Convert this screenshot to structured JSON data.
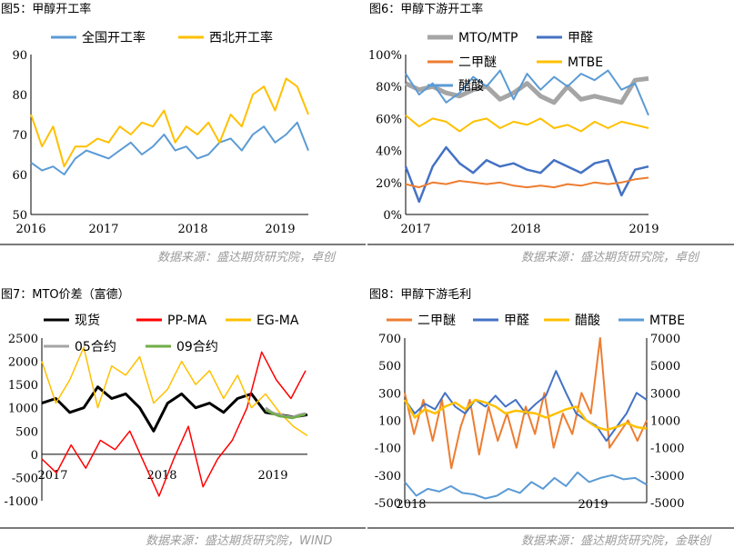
{
  "panels": {
    "p5": {
      "title": "图5：甲醇开工率",
      "source": "数据来源：盛达期货研究院，卓创"
    },
    "p6": {
      "title": "图6：甲醇下游开工率",
      "source": "数据来源：盛达期货研究院，卓创"
    },
    "p7": {
      "title": "图7：MTO价差（富德）",
      "source": "数据来源：盛达期货研究院，WIND"
    },
    "p8": {
      "title": "图8：甲醇下游毛利",
      "source": "数据来源：盛达期货研究院，金联创"
    }
  },
  "colors": {
    "blue": "#5b9bd5",
    "yellow": "#ffc000",
    "orange": "#ed7d31",
    "gray": "#a5a5a5",
    "black": "#000000",
    "red": "#ff0000",
    "green": "#70ad47",
    "navy": "#4472c4",
    "rule": "#7a7a7a"
  },
  "chart_data": [
    {
      "id": "p5",
      "type": "line",
      "x_ticks": [
        "2016",
        "2017",
        "2018",
        "2019"
      ],
      "y_ticks": [
        "50",
        "60",
        "70",
        "80",
        "90"
      ],
      "ylim": [
        50,
        90
      ],
      "legend_position": "top",
      "series": [
        {
          "name": "全国开工率",
          "color": "blue",
          "values": [
            63,
            61,
            62,
            60,
            64,
            66,
            65,
            64,
            66,
            68,
            65,
            67,
            70,
            66,
            67,
            64,
            65,
            68,
            69,
            66,
            70,
            72,
            68,
            70,
            73,
            66
          ]
        },
        {
          "name": "西北开工率",
          "color": "yellow",
          "values": [
            75,
            67,
            72,
            62,
            67,
            67,
            69,
            68,
            72,
            70,
            73,
            72,
            76,
            68,
            72,
            70,
            73,
            68,
            75,
            72,
            80,
            82,
            76,
            84,
            82,
            75
          ]
        }
      ]
    },
    {
      "id": "p6",
      "type": "line",
      "x_ticks": [
        "2017",
        "2018",
        "2019"
      ],
      "y_ticks": [
        "0%",
        "20%",
        "40%",
        "60%",
        "80%",
        "100%"
      ],
      "ylim": [
        0,
        100
      ],
      "legend_position": "top",
      "series": [
        {
          "name": "MTO/MTP",
          "color": "gray",
          "values": [
            82,
            78,
            80,
            76,
            74,
            78,
            80,
            72,
            76,
            82,
            74,
            70,
            80,
            72,
            74,
            72,
            70,
            84,
            85
          ]
        },
        {
          "name": "甲醛",
          "color": "navy",
          "values": [
            30,
            8,
            30,
            42,
            32,
            26,
            34,
            30,
            32,
            28,
            26,
            34,
            30,
            26,
            32,
            34,
            12,
            28,
            30
          ]
        },
        {
          "name": "二甲醚",
          "color": "orange",
          "values": [
            19,
            17,
            20,
            19,
            21,
            20,
            19,
            20,
            18,
            17,
            18,
            17,
            19,
            18,
            20,
            19,
            20,
            22,
            23
          ]
        },
        {
          "name": "MTBE",
          "color": "yellow",
          "values": [
            62,
            55,
            60,
            58,
            52,
            58,
            60,
            54,
            58,
            56,
            60,
            54,
            56,
            52,
            58,
            54,
            58,
            56,
            54
          ]
        },
        {
          "name": "醋酸",
          "color": "blue",
          "values": [
            88,
            75,
            82,
            70,
            76,
            86,
            80,
            90,
            72,
            88,
            78,
            86,
            80,
            88,
            84,
            90,
            78,
            82,
            62
          ]
        }
      ]
    },
    {
      "id": "p7",
      "type": "line",
      "x_ticks": [
        "2017",
        "2018",
        "2019"
      ],
      "y_ticks": [
        "-1000",
        "-500",
        "0",
        "500",
        "1000",
        "1500",
        "2000",
        "2500"
      ],
      "ylim": [
        -1000,
        2500
      ],
      "legend_position": "top",
      "series": [
        {
          "name": "现货",
          "color": "black",
          "values": [
            1100,
            1200,
            900,
            1000,
            1450,
            1200,
            1300,
            1000,
            500,
            1100,
            1300,
            1000,
            1100,
            900,
            1200,
            1300,
            900,
            850,
            800,
            850
          ]
        },
        {
          "name": "PP-MA",
          "color": "red",
          "values": [
            -100,
            -400,
            200,
            -300,
            300,
            100,
            500,
            -200,
            -900,
            -100,
            600,
            -700,
            -100,
            300,
            1000,
            2200,
            1600,
            1200,
            1800
          ]
        },
        {
          "name": "EG-MA",
          "color": "yellow",
          "values": [
            2000,
            1100,
            1600,
            2300,
            1000,
            1900,
            1700,
            2100,
            1100,
            1400,
            2000,
            1500,
            1800,
            1200,
            1700,
            1000,
            1300,
            900,
            600,
            400
          ]
        },
        {
          "name": "05合约",
          "color": "gray",
          "values": [
            1000,
            900,
            850,
            820,
            800,
            850,
            880
          ]
        },
        {
          "name": "09合约",
          "color": "green",
          "values": [
            950,
            880,
            820,
            800,
            780,
            820,
            860
          ]
        }
      ]
    },
    {
      "id": "p8",
      "type": "line",
      "x_ticks": [
        "2018",
        "2019"
      ],
      "y_ticks": [
        "-500",
        "-300",
        "-100",
        "100",
        "300",
        "500",
        "700"
      ],
      "ylim": [
        -500,
        700
      ],
      "y2_ticks": [
        "-5000",
        "-3000",
        "-1000",
        "1000",
        "3000",
        "5000",
        "7000"
      ],
      "y2lim": [
        -5000,
        7000
      ],
      "legend_position": "top",
      "series": [
        {
          "name": "二甲醚",
          "color": "orange",
          "axis": "left",
          "values": [
            300,
            0,
            250,
            -50,
            250,
            -250,
            50,
            250,
            -150,
            200,
            -50,
            150,
            -100,
            200,
            0,
            300,
            -100,
            150,
            0,
            300,
            150,
            700,
            -100,
            0,
            100,
            -50,
            100
          ]
        },
        {
          "name": "甲醛",
          "color": "navy",
          "axis": "left",
          "values": [
            250,
            150,
            220,
            180,
            300,
            200,
            150,
            250,
            200,
            280,
            200,
            250,
            150,
            220,
            280,
            460,
            300,
            150,
            100,
            60,
            -50,
            50,
            150,
            300,
            250
          ]
        },
        {
          "name": "醋酸",
          "color": "yellow",
          "axis": "right",
          "values": [
            2500,
            1200,
            1800,
            1500,
            2000,
            2300,
            1800,
            2500,
            2300,
            2000,
            1500,
            1700,
            1600,
            1500,
            1200,
            1500,
            1800,
            2000,
            1000,
            500,
            300,
            500,
            800,
            500,
            400
          ]
        },
        {
          "name": "MTBE",
          "color": "blue",
          "axis": "right",
          "values": [
            -3500,
            -4500,
            -4000,
            -4200,
            -3800,
            -4300,
            -4400,
            -4700,
            -4500,
            -4000,
            -4300,
            -3500,
            -4000,
            -3200,
            -3800,
            -2800,
            -3500,
            -3200,
            -3000,
            -3300,
            -3200,
            -3700
          ]
        }
      ]
    }
  ]
}
